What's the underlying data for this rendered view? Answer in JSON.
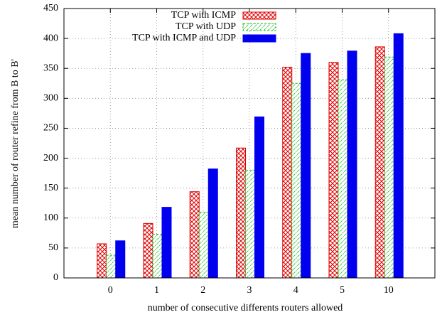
{
  "chart_data": {
    "type": "bar",
    "x_label": "number of consecutive differents routers allowed",
    "y_label": "mean number of router refine from B to B'",
    "categories": [
      "0",
      "1",
      "2",
      "3",
      "4",
      "5",
      "10"
    ],
    "series": [
      {
        "name": "TCP with ICMP",
        "color": "#e00000",
        "pattern": "crosshatch",
        "values": [
          57,
          91,
          144,
          217,
          352,
          360,
          386
        ]
      },
      {
        "name": "TCP with UDP",
        "color": "#22bb22",
        "pattern": "diagonal",
        "values": [
          38,
          73,
          110,
          180,
          325,
          331,
          369
        ]
      },
      {
        "name": "TCP with ICMP and UDP",
        "color": "#0000ee",
        "pattern": "solid",
        "values": [
          62,
          118,
          182,
          269,
          375,
          379,
          408
        ]
      }
    ],
    "ylim": [
      0,
      450
    ],
    "yticks": [
      0,
      50,
      100,
      150,
      200,
      250,
      300,
      350,
      400,
      450
    ],
    "grid": true,
    "legend": "top-left"
  }
}
